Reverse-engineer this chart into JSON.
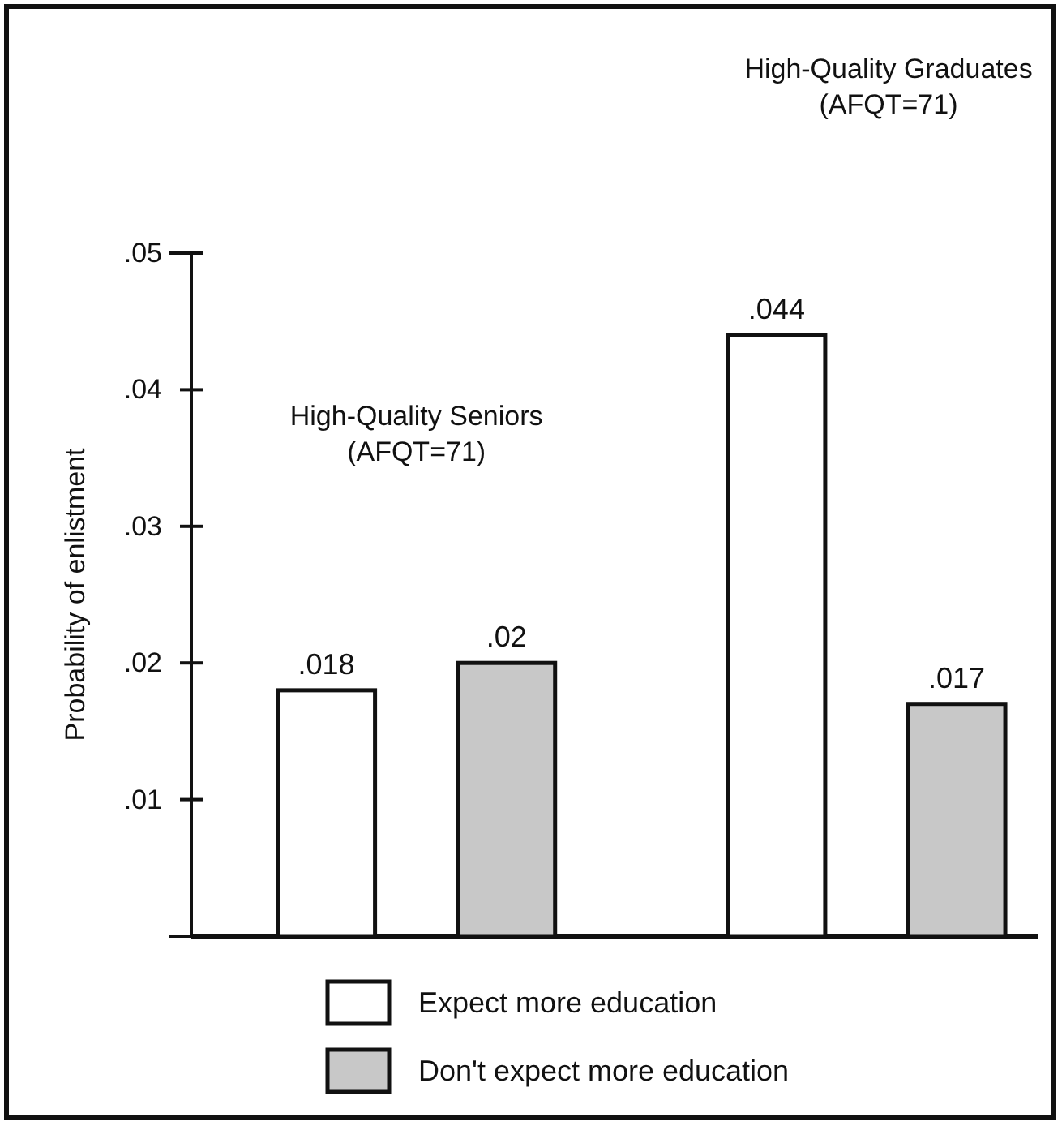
{
  "chart_data": {
    "type": "bar",
    "ylabel": "Probability of enlistment",
    "categories": [
      null,
      null,
      null,
      null
    ],
    "series": [
      {
        "name": "Expect more education",
        "color": "#ffffff",
        "values": [
          0.018,
          null,
          0.044,
          null
        ],
        "value_labels": [
          ".018",
          null,
          ".044",
          null
        ]
      },
      {
        "name": "Don't expect more education",
        "color": "#c8c8c8",
        "values": [
          null,
          0.02,
          null,
          0.017
        ],
        "value_labels": [
          null,
          ".02",
          null,
          ".017"
        ]
      }
    ],
    "ylim": [
      0,
      0.05
    ],
    "yticks": [
      {
        "value": 0.01,
        "label": ".01"
      },
      {
        "value": 0.02,
        "label": ".02"
      },
      {
        "value": 0.03,
        "label": ".03"
      },
      {
        "value": 0.04,
        "label": ".04"
      },
      {
        "value": 0.05,
        "label": ".05"
      }
    ],
    "annotations": [
      "High-Quality Seniors\n(AFQT=71)",
      "High-Quality Graduates\n(AFQT=71)"
    ],
    "legend": "bottom",
    "grid": false
  }
}
